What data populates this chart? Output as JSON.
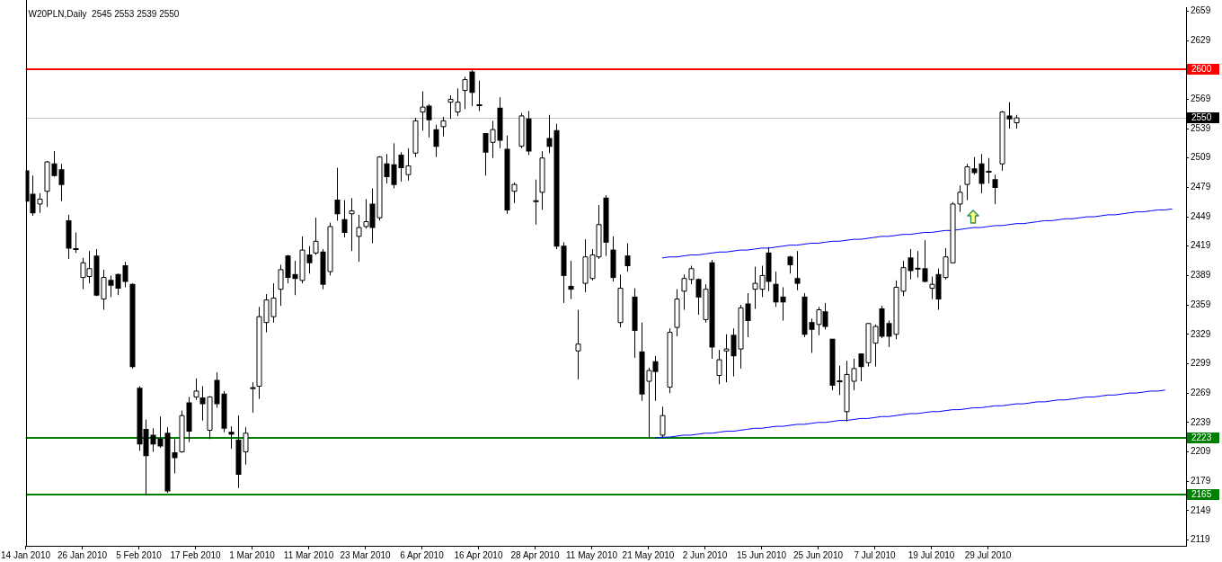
{
  "chart_data": {
    "type": "candlestick",
    "title": "W20PLN,Daily  2545 2553 2539 2550",
    "categories": [
      "14 Jan 2010",
      null,
      null,
      null,
      null,
      null,
      null,
      null,
      "26 Jan 2010",
      null,
      null,
      null,
      null,
      null,
      null,
      null,
      "5 Feb 2010",
      null,
      null,
      null,
      null,
      null,
      null,
      null,
      "17 Feb 2010",
      null,
      null,
      null,
      null,
      null,
      null,
      null,
      "1 Mar 2010",
      null,
      null,
      null,
      null,
      null,
      null,
      null,
      "11 Mar 2010",
      null,
      null,
      null,
      null,
      null,
      null,
      null,
      "23 Mar 2010",
      null,
      null,
      null,
      null,
      null,
      null,
      null,
      "6 Apr 2010",
      null,
      null,
      null,
      null,
      null,
      null,
      null,
      "16 Apr 2010",
      null,
      null,
      null,
      null,
      null,
      null,
      null,
      "28 Apr 2010",
      null,
      null,
      null,
      null,
      null,
      null,
      null,
      "11 May 2010",
      null,
      null,
      null,
      null,
      null,
      null,
      null,
      "21 May 2010",
      null,
      null,
      null,
      null,
      null,
      null,
      null,
      "2 Jun 2010",
      null,
      null,
      null,
      null,
      null,
      null,
      null,
      "15 Jun 2010",
      null,
      null,
      null,
      null,
      null,
      null,
      null,
      "25 Jun 2010",
      null,
      null,
      null,
      null,
      null,
      null,
      null,
      "7 Jul 2010",
      null,
      null,
      null,
      null,
      null,
      null,
      null,
      "19 Jul 2010",
      null,
      null,
      null,
      null,
      null,
      null,
      null,
      "29 Jul 2010",
      null,
      null,
      null,
      null,
      null,
      null,
      null,
      null,
      null,
      null,
      null,
      null,
      null,
      null,
      null,
      null,
      null,
      null,
      null,
      null,
      null,
      null,
      null,
      null,
      null,
      null,
      null,
      null
    ],
    "ohlc": [
      [
        2496,
        2498,
        2456,
        2465
      ],
      [
        2472,
        2491,
        2450,
        2453
      ],
      [
        2462,
        2473,
        2453,
        2467
      ],
      [
        2475,
        2506,
        2459,
        2505
      ],
      [
        2503,
        2516,
        2490,
        2491
      ],
      [
        2497,
        2503,
        2465,
        2482
      ],
      [
        2445,
        2451,
        2406,
        2417
      ],
      [
        2416,
        2433,
        2412,
        2416
      ],
      [
        2387,
        2407,
        2375,
        2402
      ],
      [
        2388,
        2414,
        2381,
        2396
      ],
      [
        2409,
        2416,
        2368,
        2369
      ],
      [
        2365,
        2395,
        2354,
        2387
      ],
      [
        2384,
        2389,
        2367,
        2379
      ],
      [
        2390,
        2391,
        2369,
        2376
      ],
      [
        2399,
        2403,
        2377,
        2383
      ],
      [
        2380,
        2381,
        2294,
        2296
      ],
      [
        2274,
        2276,
        2210,
        2217
      ],
      [
        2232,
        2242,
        2165,
        2205
      ],
      [
        2226,
        2233,
        2209,
        2217
      ],
      [
        2222,
        2245,
        2213,
        2215
      ],
      [
        2228,
        2234,
        2167,
        2169
      ],
      [
        2208,
        2222,
        2187,
        2203
      ],
      [
        2209,
        2251,
        2208,
        2246
      ],
      [
        2259,
        2265,
        2219,
        2230
      ],
      [
        2265,
        2284,
        2262,
        2271
      ],
      [
        2264,
        2276,
        2241,
        2258
      ],
      [
        2231,
        2266,
        2222,
        2265
      ],
      [
        2282,
        2290,
        2254,
        2258
      ],
      [
        2268,
        2271,
        2229,
        2233
      ],
      [
        2229,
        2235,
        2212,
        2227
      ],
      [
        2221,
        2246,
        2172,
        2186
      ],
      [
        2209,
        2234,
        2196,
        2228
      ],
      [
        2274,
        2280,
        2249,
        2274
      ],
      [
        2276,
        2357,
        2263,
        2347
      ],
      [
        2341,
        2370,
        2331,
        2364
      ],
      [
        2347,
        2381,
        2341,
        2366
      ],
      [
        2375,
        2400,
        2358,
        2395
      ],
      [
        2409,
        2410,
        2381,
        2387
      ],
      [
        2390,
        2404,
        2369,
        2386
      ],
      [
        2384,
        2429,
        2381,
        2415
      ],
      [
        2410,
        2419,
        2391,
        2402
      ],
      [
        2412,
        2448,
        2410,
        2424
      ],
      [
        2413,
        2416,
        2375,
        2380
      ],
      [
        2393,
        2443,
        2389,
        2439
      ],
      [
        2466,
        2499,
        2445,
        2452
      ],
      [
        2446,
        2466,
        2428,
        2433
      ],
      [
        2452,
        2468,
        2414,
        2455
      ],
      [
        2429,
        2451,
        2403,
        2438
      ],
      [
        2439,
        2467,
        2437,
        2444
      ],
      [
        2462,
        2478,
        2422,
        2438
      ],
      [
        2448,
        2511,
        2445,
        2510
      ],
      [
        2503,
        2513,
        2483,
        2490
      ],
      [
        2502,
        2524,
        2478,
        2482
      ],
      [
        2512,
        2515,
        2485,
        2499
      ],
      [
        2492,
        2519,
        2486,
        2501
      ],
      [
        2514,
        2550,
        2510,
        2547
      ],
      [
        2556,
        2577,
        2537,
        2561
      ],
      [
        2562,
        2564,
        2530,
        2548
      ],
      [
        2538,
        2543,
        2510,
        2521
      ],
      [
        2541,
        2551,
        2531,
        2547
      ],
      [
        2566,
        2573,
        2549,
        2569
      ],
      [
        2556,
        2580,
        2552,
        2566
      ],
      [
        2578,
        2592,
        2559,
        2589
      ],
      [
        2597,
        2599,
        2562,
        2576
      ],
      [
        2563,
        2588,
        2557,
        2563
      ],
      [
        2534,
        2534,
        2491,
        2515
      ],
      [
        2525,
        2547,
        2509,
        2538
      ],
      [
        2560,
        2571,
        2519,
        2527
      ],
      [
        2518,
        2532,
        2452,
        2456
      ],
      [
        2475,
        2484,
        2463,
        2482
      ],
      [
        2521,
        2555,
        2519,
        2552
      ],
      [
        2549,
        2557,
        2512,
        2516
      ],
      [
        2465,
        2487,
        2441,
        2465
      ],
      [
        2474,
        2516,
        2456,
        2509
      ],
      [
        2529,
        2553,
        2514,
        2521
      ],
      [
        2537,
        2544,
        2416,
        2419
      ],
      [
        2419,
        2423,
        2361,
        2389
      ],
      [
        2378,
        2404,
        2365,
        2375
      ],
      [
        2312,
        2354,
        2283,
        2319
      ],
      [
        2381,
        2426,
        2372,
        2408
      ],
      [
        2386,
        2416,
        2384,
        2410
      ],
      [
        2408,
        2461,
        2406,
        2441
      ],
      [
        2468,
        2471,
        2409,
        2423
      ],
      [
        2415,
        2429,
        2383,
        2387
      ],
      [
        2341,
        2390,
        2336,
        2376
      ],
      [
        2409,
        2422,
        2393,
        2399
      ],
      [
        2367,
        2376,
        2305,
        2333
      ],
      [
        2311,
        2341,
        2261,
        2268
      ],
      [
        2281,
        2295,
        2223,
        2292
      ],
      [
        2301,
        2307,
        2261,
        2291
      ],
      [
        2226,
        2255,
        2223,
        2246
      ],
      [
        2275,
        2335,
        2269,
        2331
      ],
      [
        2336,
        2375,
        2327,
        2365
      ],
      [
        2373,
        2390,
        2354,
        2386
      ],
      [
        2385,
        2399,
        2380,
        2396
      ],
      [
        2385,
        2386,
        2349,
        2367
      ],
      [
        2344,
        2380,
        2341,
        2375
      ],
      [
        2402,
        2405,
        2304,
        2316
      ],
      [
        2287,
        2313,
        2278,
        2303
      ],
      [
        2312,
        2329,
        2280,
        2314
      ],
      [
        2328,
        2335,
        2286,
        2307
      ],
      [
        2314,
        2359,
        2294,
        2356
      ],
      [
        2360,
        2371,
        2326,
        2343
      ],
      [
        2375,
        2398,
        2355,
        2381
      ],
      [
        2375,
        2399,
        2367,
        2389
      ],
      [
        2412,
        2418,
        2373,
        2383
      ],
      [
        2380,
        2393,
        2357,
        2362
      ],
      [
        2367,
        2377,
        2343,
        2362
      ],
      [
        2408,
        2409,
        2391,
        2400
      ],
      [
        2386,
        2414,
        2374,
        2381
      ],
      [
        2367,
        2371,
        2326,
        2329
      ],
      [
        2341,
        2345,
        2310,
        2334
      ],
      [
        2339,
        2357,
        2328,
        2354
      ],
      [
        2352,
        2361,
        2334,
        2337
      ],
      [
        2324,
        2324,
        2272,
        2277
      ],
      [
        2281,
        2297,
        2267,
        2281
      ],
      [
        2250,
        2302,
        2240,
        2288
      ],
      [
        2281,
        2304,
        2272,
        2294
      ],
      [
        2309,
        2309,
        2281,
        2296
      ],
      [
        2300,
        2340,
        2296,
        2340
      ],
      [
        2320,
        2339,
        2296,
        2337
      ],
      [
        2355,
        2358,
        2325,
        2327
      ],
      [
        2340,
        2343,
        2316,
        2327
      ],
      [
        2329,
        2384,
        2324,
        2377
      ],
      [
        2373,
        2404,
        2368,
        2397
      ],
      [
        2407,
        2416,
        2385,
        2394
      ],
      [
        2396,
        2414,
        2387,
        2396
      ],
      [
        2396,
        2425,
        2382,
        2383
      ],
      [
        2376,
        2388,
        2365,
        2380
      ],
      [
        2390,
        2396,
        2354,
        2365
      ],
      [
        2387,
        2417,
        2385,
        2408
      ],
      [
        2402,
        2464,
        2402,
        2462
      ],
      [
        2462,
        2481,
        2454,
        2474
      ],
      [
        2482,
        2503,
        2466,
        2500
      ],
      [
        2498,
        2510,
        2492,
        2494
      ],
      [
        2503,
        2513,
        2473,
        2483
      ],
      [
        2495,
        2509,
        2483,
        2495
      ],
      [
        2487,
        2492,
        2462,
        2479
      ],
      [
        2503,
        2557,
        2496,
        2556
      ],
      [
        2552,
        2566,
        2539,
        2549
      ],
      [
        2545,
        2553,
        2539,
        2550
      ],
      null,
      null,
      null,
      null,
      null,
      null,
      null,
      null,
      null,
      null,
      null,
      null,
      null,
      null,
      null,
      null,
      null,
      null,
      null,
      null,
      null,
      null,
      null,
      null
    ],
    "series": [
      {
        "type": "line",
        "color": "#0000ff",
        "values": [
          null,
          null,
          null,
          null,
          null,
          null,
          null,
          null,
          null,
          null,
          null,
          null,
          null,
          null,
          null,
          null,
          null,
          null,
          null,
          null,
          null,
          null,
          null,
          null,
          null,
          null,
          null,
          null,
          null,
          null,
          null,
          null,
          null,
          null,
          null,
          null,
          null,
          null,
          null,
          null,
          null,
          null,
          null,
          null,
          null,
          null,
          null,
          null,
          null,
          null,
          null,
          null,
          null,
          null,
          null,
          null,
          null,
          null,
          null,
          null,
          null,
          null,
          null,
          null,
          null,
          null,
          null,
          null,
          null,
          null,
          null,
          null,
          null,
          null,
          null,
          null,
          null,
          null,
          null,
          null,
          null,
          null,
          null,
          null,
          null,
          null,
          null,
          null,
          null,
          null,
          2407,
          2408,
          2408,
          2409,
          2410,
          2410,
          2411,
          2412,
          2413,
          2413,
          2414,
          2415,
          2415,
          2416,
          2417,
          2417,
          2418,
          2419,
          2420,
          2420,
          2421,
          2422,
          2422,
          2423,
          2424,
          2424,
          2425,
          2426,
          2426,
          2427,
          2428,
          2429,
          2429,
          2430,
          2431,
          2431,
          2432,
          2433,
          2433,
          2434,
          2435,
          2435,
          2436,
          2437,
          2438,
          2438,
          2439,
          2440,
          2440,
          2441,
          2442,
          2442,
          2443,
          2444,
          2445,
          2445,
          2446,
          2447,
          2447,
          2448,
          2449,
          2449,
          2450,
          2451,
          2451,
          2452,
          2453,
          2454,
          2454,
          2455,
          2456,
          2456,
          2457,
          null,
          null
        ]
      },
      {
        "type": "line",
        "color": "#0000ff",
        "values": [
          null,
          null,
          null,
          null,
          null,
          null,
          null,
          null,
          null,
          null,
          null,
          null,
          null,
          null,
          null,
          null,
          null,
          null,
          null,
          null,
          null,
          null,
          null,
          null,
          null,
          null,
          null,
          null,
          null,
          null,
          null,
          null,
          null,
          null,
          null,
          null,
          null,
          null,
          null,
          null,
          null,
          null,
          null,
          null,
          null,
          null,
          null,
          null,
          null,
          null,
          null,
          null,
          null,
          null,
          null,
          null,
          null,
          null,
          null,
          null,
          null,
          null,
          null,
          null,
          null,
          null,
          null,
          null,
          null,
          null,
          null,
          null,
          null,
          null,
          null,
          null,
          null,
          null,
          null,
          null,
          null,
          null,
          null,
          null,
          null,
          null,
          null,
          null,
          null,
          2223,
          2224,
          2224,
          2225,
          2226,
          2226,
          2227,
          2228,
          2228,
          2229,
          2230,
          2230,
          2231,
          2232,
          2233,
          2233,
          2234,
          2235,
          2235,
          2236,
          2237,
          2237,
          2238,
          2239,
          2239,
          2240,
          2241,
          2241,
          2242,
          2243,
          2243,
          2244,
          2245,
          2245,
          2246,
          2247,
          2248,
          2248,
          2249,
          2250,
          2250,
          2251,
          2252,
          2252,
          2253,
          2254,
          2254,
          2255,
          2256,
          2256,
          2257,
          2258,
          2258,
          2259,
          2260,
          2260,
          2261,
          2262,
          2262,
          2263,
          2264,
          2265,
          2265,
          2266,
          2267,
          2267,
          2268,
          2269,
          2269,
          2270,
          2271,
          2271,
          2272,
          null,
          null,
          null
        ]
      }
    ],
    "ylim": [
      2113,
      2663
    ],
    "yticks": [
      2119,
      2149,
      2179,
      2209,
      2239,
      2269,
      2299,
      2329,
      2359,
      2389,
      2419,
      2449,
      2479,
      2509,
      2539,
      2569,
      {
        "value": 2599,
        "label": null
      },
      2629,
      2659
    ],
    "ref_lines": [
      {
        "axis": "y",
        "value": 2600,
        "label": "2600",
        "color": "#ff0000"
      },
      {
        "axis": "y",
        "value": 2550,
        "label": "2550",
        "color": "#c0c0c0"
      },
      {
        "axis": "y",
        "value": 2223,
        "label": "2223",
        "color": "#008000"
      },
      {
        "axis": "y",
        "value": 2165,
        "label": "2165",
        "color": "#008000"
      }
    ]
  }
}
